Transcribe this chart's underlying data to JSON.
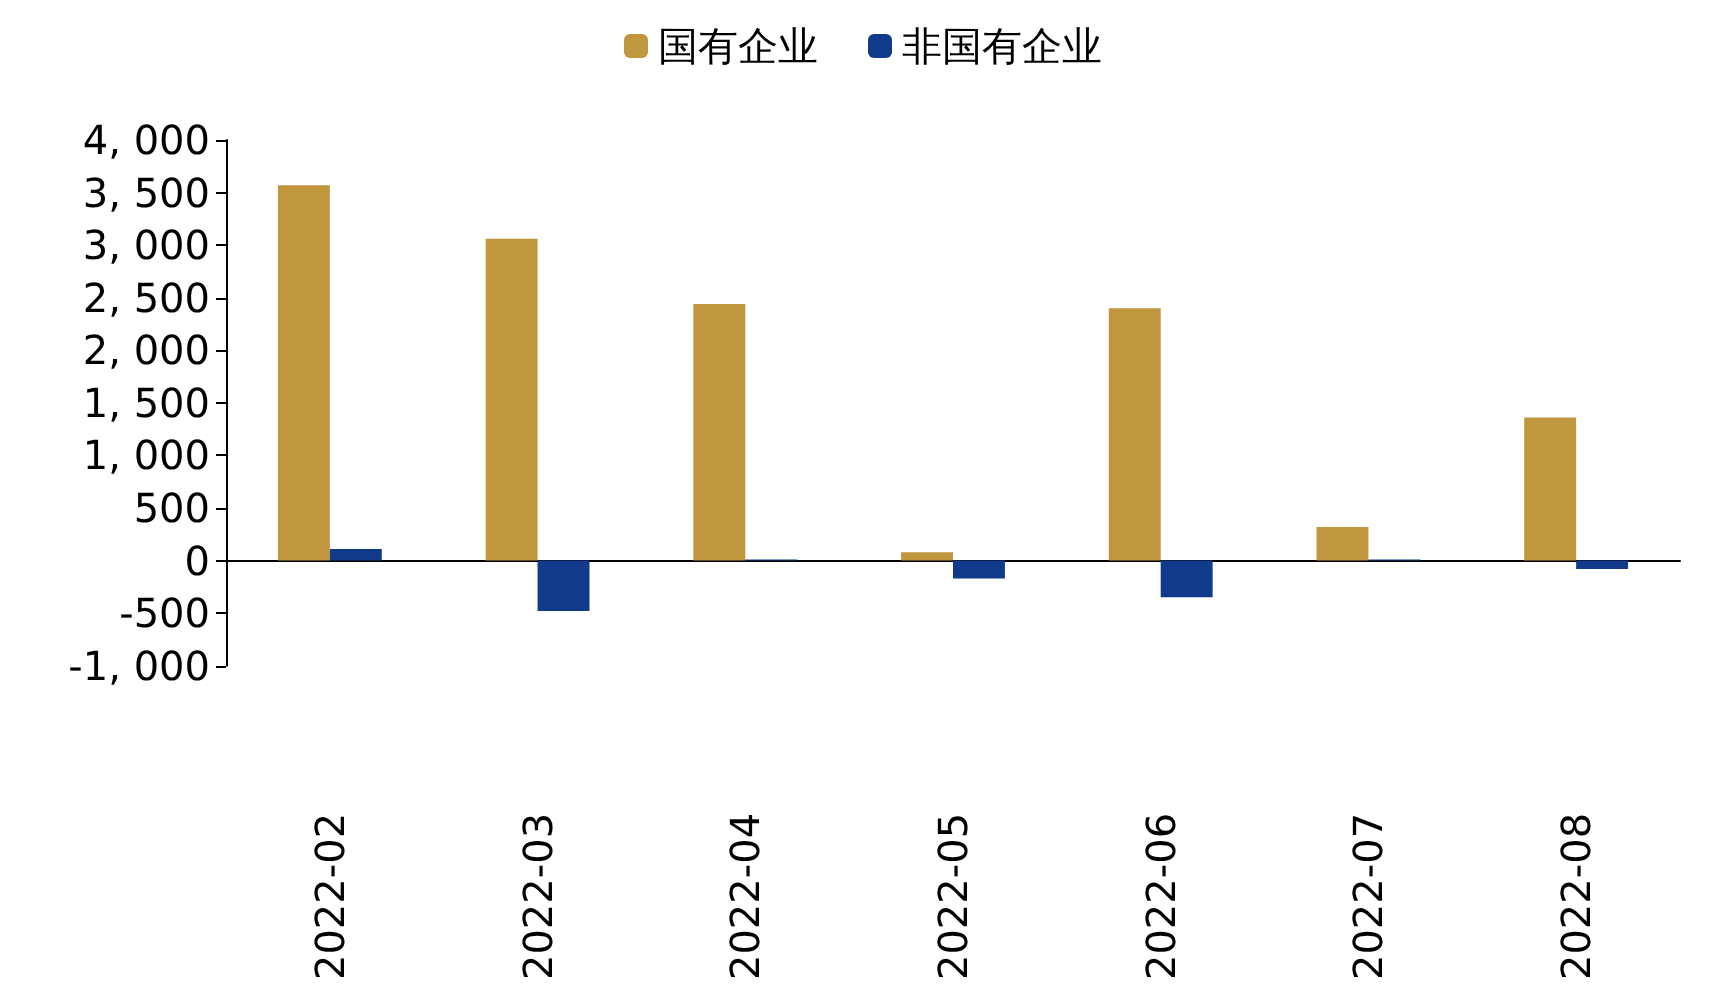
{
  "chart_data": {
    "type": "bar",
    "categories": [
      "2022-02",
      "2022-03",
      "2022-04",
      "2022-05",
      "2022-06",
      "2022-07",
      "2022-08"
    ],
    "series": [
      {
        "name": "国有企业",
        "color": "#c0963f",
        "values": [
          3570,
          3060,
          2440,
          80,
          2400,
          320,
          1360
        ]
      },
      {
        "name": "非国有企业",
        "color": "#123a8a",
        "values": [
          110,
          -480,
          10,
          -170,
          -350,
          10,
          -80
        ]
      }
    ],
    "ylim": [
      -1000,
      4000
    ],
    "yticks": [
      {
        "value": -1000,
        "label": "-1, 000"
      },
      {
        "value": -500,
        "label": "-500"
      },
      {
        "value": 0,
        "label": "0"
      },
      {
        "value": 500,
        "label": "500"
      },
      {
        "value": 1000,
        "label": "1, 000"
      },
      {
        "value": 1500,
        "label": "1, 500"
      },
      {
        "value": 2000,
        "label": "2, 000"
      },
      {
        "value": 2500,
        "label": "2, 500"
      },
      {
        "value": 3000,
        "label": "3, 000"
      },
      {
        "value": 3500,
        "label": "3, 500"
      },
      {
        "value": 4000,
        "label": "4, 000"
      }
    ],
    "legend": "top"
  }
}
